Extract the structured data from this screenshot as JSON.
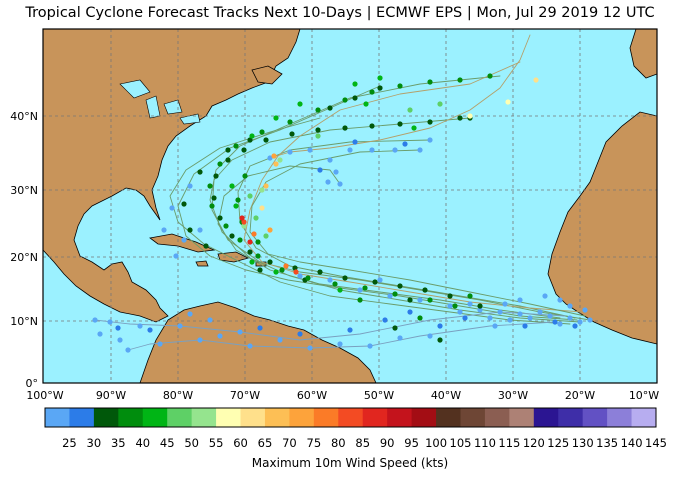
{
  "title": "Tropical Cyclone Forecast Tracks Next 10-Days | ECMWF EPS | Mon, Jul 29 2019 12 UTC",
  "map": {
    "lat_labels": [
      "40°N",
      "30°N",
      "20°N",
      "10°N",
      "0°"
    ],
    "lon_labels": [
      "100°W",
      "90°W",
      "80°W",
      "70°W",
      "60°W",
      "50°W",
      "40°W",
      "30°W",
      "20°W",
      "10°W"
    ],
    "colors": {
      "ocean": "#9bf1ff",
      "land": "#c8945a",
      "border": "#000000",
      "grid": "#777777"
    }
  },
  "colorbar": {
    "title": "Maximum 10m Wind Speed (kts)",
    "ticks": [
      "25",
      "30",
      "35",
      "40",
      "45",
      "50",
      "55",
      "60",
      "65",
      "70",
      "75",
      "80",
      "85",
      "90",
      "95",
      "100",
      "105",
      "110",
      "115",
      "120",
      "125",
      "130",
      "135",
      "140",
      "145"
    ],
    "colors": [
      "#5aa7f5",
      "#2c7ce8",
      "#00580a",
      "#008d0d",
      "#00b515",
      "#5ed066",
      "#95e48e",
      "#ffffb2",
      "#ffe08b",
      "#fdbf55",
      "#fda33b",
      "#fb7b27",
      "#f34b23",
      "#e1261f",
      "#c4131c",
      "#a30d14",
      "#53311f",
      "#6e4635",
      "#8b5e52",
      "#ad8175",
      "#2b1592",
      "#3e2ea8",
      "#6251c4",
      "#8c7fd9",
      "#b7adf0"
    ]
  }
}
